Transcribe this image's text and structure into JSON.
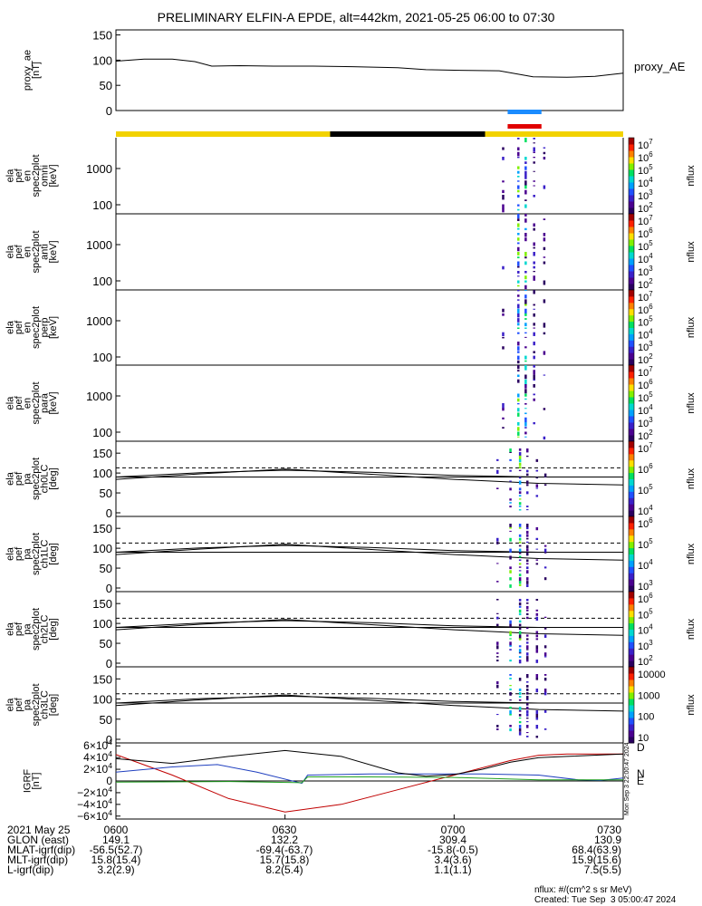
{
  "title": "PRELIMINARY ELFIN-A EPDE, alt=442km, 2021-05-25 06:00 to 07:30",
  "chart_data": {
    "type": "line",
    "time_axis": {
      "start": "06:00",
      "end": "07:30",
      "ticks": [
        "0600",
        "0630",
        "0700",
        "0730"
      ]
    },
    "panels": [
      {
        "id": "proxy_ae",
        "type": "line",
        "ylabel": [
          "proxy_ae",
          "[nT]"
        ],
        "ylim": [
          0,
          160
        ],
        "yticks": [
          "150",
          "100",
          "50",
          "0"
        ],
        "legend": "proxy_AE",
        "series": [
          {
            "name": "proxy_AE",
            "t_min": [
              0,
              5,
              10,
              14,
              17,
              22,
              28,
              35,
              42,
              50,
              55,
              60,
              68,
              74,
              80,
              85,
              90
            ],
            "values": [
              98,
              102,
              102,
              97,
              88,
              89,
              88,
              88,
              87,
              85,
              81,
              80,
              79,
              67,
              66,
              68,
              74
            ]
          }
        ]
      },
      {
        "id": "bars",
        "type": "status_bars",
        "segments": [
          {
            "t_start": 0,
            "t_end": 38,
            "color": "#f2d200"
          },
          {
            "t_start": 38,
            "t_end": 65.5,
            "color": "#000000"
          },
          {
            "t_start": 65.5,
            "t_end": 90,
            "color": "#f2d200"
          }
        ],
        "markers": [
          {
            "t_start": 69.5,
            "t_end": 75.5,
            "color": "#1a8cff"
          },
          {
            "t_start": 69.5,
            "t_end": 75.5,
            "color": "#e00000"
          }
        ]
      },
      {
        "id": "en_omni",
        "type": "spectrogram",
        "ylabel": [
          "ela",
          "pef",
          "en",
          "spec2plot",
          "omni",
          "[keV]"
        ],
        "yticks": [
          "1000",
          "100"
        ],
        "colorbar": {
          "label": "nflux",
          "ticks": [
            "10^7",
            "10^6",
            "10^5",
            "10^4",
            "10^3",
            "10^2"
          ]
        }
      },
      {
        "id": "en_anti",
        "type": "spectrogram",
        "ylabel": [
          "ela",
          "pef",
          "en",
          "spec2plot",
          "anti",
          "[keV]"
        ],
        "yticks": [
          "1000",
          "100"
        ],
        "colorbar": {
          "label": "nflux",
          "ticks": [
            "10^7",
            "10^6",
            "10^5",
            "10^4",
            "10^3",
            "10^2"
          ]
        }
      },
      {
        "id": "en_perp",
        "type": "spectrogram",
        "ylabel": [
          "ela",
          "pef",
          "en",
          "spec2plot",
          "perp",
          "[keV]"
        ],
        "yticks": [
          "1000",
          "100"
        ],
        "colorbar": {
          "label": "nflux",
          "ticks": [
            "10^7",
            "10^6",
            "10^5",
            "10^4",
            "10^3",
            "10^2"
          ]
        }
      },
      {
        "id": "en_para",
        "type": "spectrogram",
        "ylabel": [
          "ela",
          "pef",
          "en",
          "spec2plot",
          "para",
          "[keV]"
        ],
        "yticks": [
          "1000",
          "100"
        ],
        "colorbar": {
          "label": "nflux",
          "ticks": [
            "10^7",
            "10^6",
            "10^5",
            "10^4",
            "10^3",
            "10^2"
          ]
        }
      },
      {
        "id": "pa_ch0",
        "type": "spectrogram",
        "ylabel": [
          "ela",
          "pef",
          "pa",
          "spec2plot",
          "ch0LC",
          "[deg]"
        ],
        "yticks": [
          "150",
          "100",
          "50",
          "0"
        ],
        "colorbar": {
          "label": "nflux",
          "ticks": [
            "10^7",
            "10^6",
            "10^5",
            "10^4"
          ]
        }
      },
      {
        "id": "pa_ch1",
        "type": "spectrogram",
        "ylabel": [
          "ela",
          "pef",
          "pa",
          "spec2plot",
          "ch1LC",
          "[deg]"
        ],
        "yticks": [
          "150",
          "100",
          "50",
          "0"
        ],
        "colorbar": {
          "label": "nflux",
          "ticks": [
            "10^6",
            "10^5",
            "10^4",
            "10^3"
          ]
        }
      },
      {
        "id": "pa_ch2",
        "type": "spectrogram",
        "ylabel": [
          "ela",
          "pef",
          "pa",
          "spec2plot",
          "ch2LC",
          "[deg]"
        ],
        "yticks": [
          "150",
          "100",
          "50",
          "0"
        ],
        "colorbar": {
          "label": "nflux",
          "ticks": [
            "10^6",
            "10^5",
            "10^4",
            "10^3",
            "10^2"
          ]
        }
      },
      {
        "id": "pa_ch3",
        "type": "spectrogram",
        "ylabel": [
          "ela",
          "pef",
          "pa",
          "spec2plot",
          "ch3LC",
          "[deg]"
        ],
        "yticks": [
          "150",
          "100",
          "50",
          "0"
        ],
        "colorbar": {
          "label": "nflux",
          "ticks": [
            "10000",
            "1000",
            "100",
            "10"
          ]
        }
      },
      {
        "id": "igrf",
        "type": "line",
        "ylabel": [
          "IGRF",
          "[nT]"
        ],
        "ylim": [
          -65000,
          65000
        ],
        "yticks": [
          "6×10^4",
          "4×10^4",
          "2×10^4",
          "0",
          "−2×10^4",
          "−4×10^4",
          "−6×10^4"
        ],
        "series": [
          {
            "name": "D",
            "color": "#c00000",
            "t_min": [
              0,
              10,
              20,
              30,
              40,
              50,
              60,
              70,
              75,
              80,
              85,
              90
            ],
            "values": [
              45000,
              10000,
              -30000,
              -53000,
              -40000,
              -15000,
              10000,
              35000,
              44000,
              46000,
              46000,
              46000
            ]
          },
          {
            "name": "N",
            "color": "#1f3fbf",
            "t_min": [
              0,
              10,
              18,
              25,
              33,
              34,
              45,
              55,
              65,
              75,
              82,
              86,
              90
            ],
            "values": [
              15000,
              24000,
              28000,
              15000,
              -4000,
              10000,
              12000,
              12000,
              12000,
              10000,
              2000,
              1000,
              5000
            ]
          },
          {
            "name": "E",
            "color": "#20a020",
            "t_min": [
              0,
              20,
              33,
              34,
              45,
              60,
              75,
              90
            ],
            "values": [
              -2000,
              -1000,
              -3000,
              7000,
              7000,
              6000,
              2000,
              2000
            ]
          },
          {
            "name": "",
            "color": "#000000",
            "t_min": [
              0,
              10,
              20,
              30,
              40,
              50,
              55,
              60,
              65,
              70,
              75,
              80,
              90
            ],
            "values": [
              38000,
              30000,
              42000,
              52000,
              42000,
              14000,
              8000,
              11000,
              20000,
              32000,
              40000,
              42000,
              46000
            ]
          }
        ],
        "legend_side": [
          "D",
          "N",
          "E"
        ]
      }
    ]
  },
  "ephemeris": {
    "date": "2021 May 25",
    "rows": [
      {
        "label": "GLON (east)",
        "values": [
          "149.1",
          "132.2",
          "309.4",
          "130.9"
        ]
      },
      {
        "label": "MLAT-igrf(dip)",
        "values": [
          "-56.5(52.7)",
          "-69.4(-63.7)",
          "-15.8(-0.5)",
          "68.4(63.9)"
        ]
      },
      {
        "label": "MLT-igrf(dip)",
        "values": [
          "15.8(15.4)",
          "15.7(15.8)",
          "3.4(3.6)",
          "15.9(15.6)"
        ]
      },
      {
        "label": "L-igrf(dip)",
        "values": [
          "3.2(2.9)",
          "8.2(5.4)",
          "1.1(1.1)",
          "7.5(5.5)"
        ]
      }
    ],
    "times": [
      "0600",
      "0630",
      "0700",
      "0730"
    ]
  },
  "footnote_units": "nflux: #/(cm^2 s sr MeV)",
  "footnote_created": "Created: Tue Sep  3 05:00:47 2024",
  "side_stamp": "Mon Sep  3 22:00:47 2024"
}
